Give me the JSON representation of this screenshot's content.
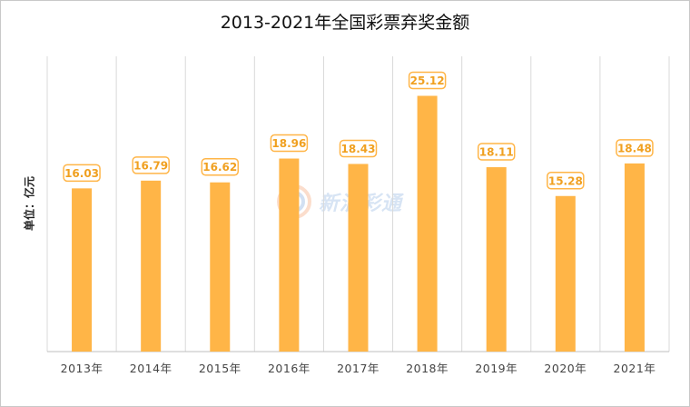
{
  "chart_data": {
    "type": "bar",
    "title": "2013-2021年全国彩票弃奖金额",
    "xlabel": "",
    "ylabel": "单位：亿元",
    "categories": [
      "2013年",
      "2014年",
      "2015年",
      "2016年",
      "2017年",
      "2018年",
      "2019年",
      "2020年",
      "2021年"
    ],
    "values": [
      16.03,
      16.79,
      16.62,
      18.96,
      18.43,
      25.12,
      18.11,
      15.28,
      18.48
    ],
    "value_labels": [
      "16.03",
      "16.79",
      "16.62",
      "18.96",
      "18.43",
      "25.12",
      "18.11",
      "15.28",
      "18.48"
    ],
    "ylim": [
      0,
      29
    ],
    "grid": "vertical",
    "legend": "none",
    "colors": {
      "bar": "#ffb547",
      "label_border": "#ffb547",
      "label_text": "#f0a020",
      "grid": "#d9d9d9",
      "axis": "#bfbfbf"
    }
  },
  "watermark": {
    "text": "新浪彩通",
    "icon": "sina-lottery-logo-icon"
  }
}
